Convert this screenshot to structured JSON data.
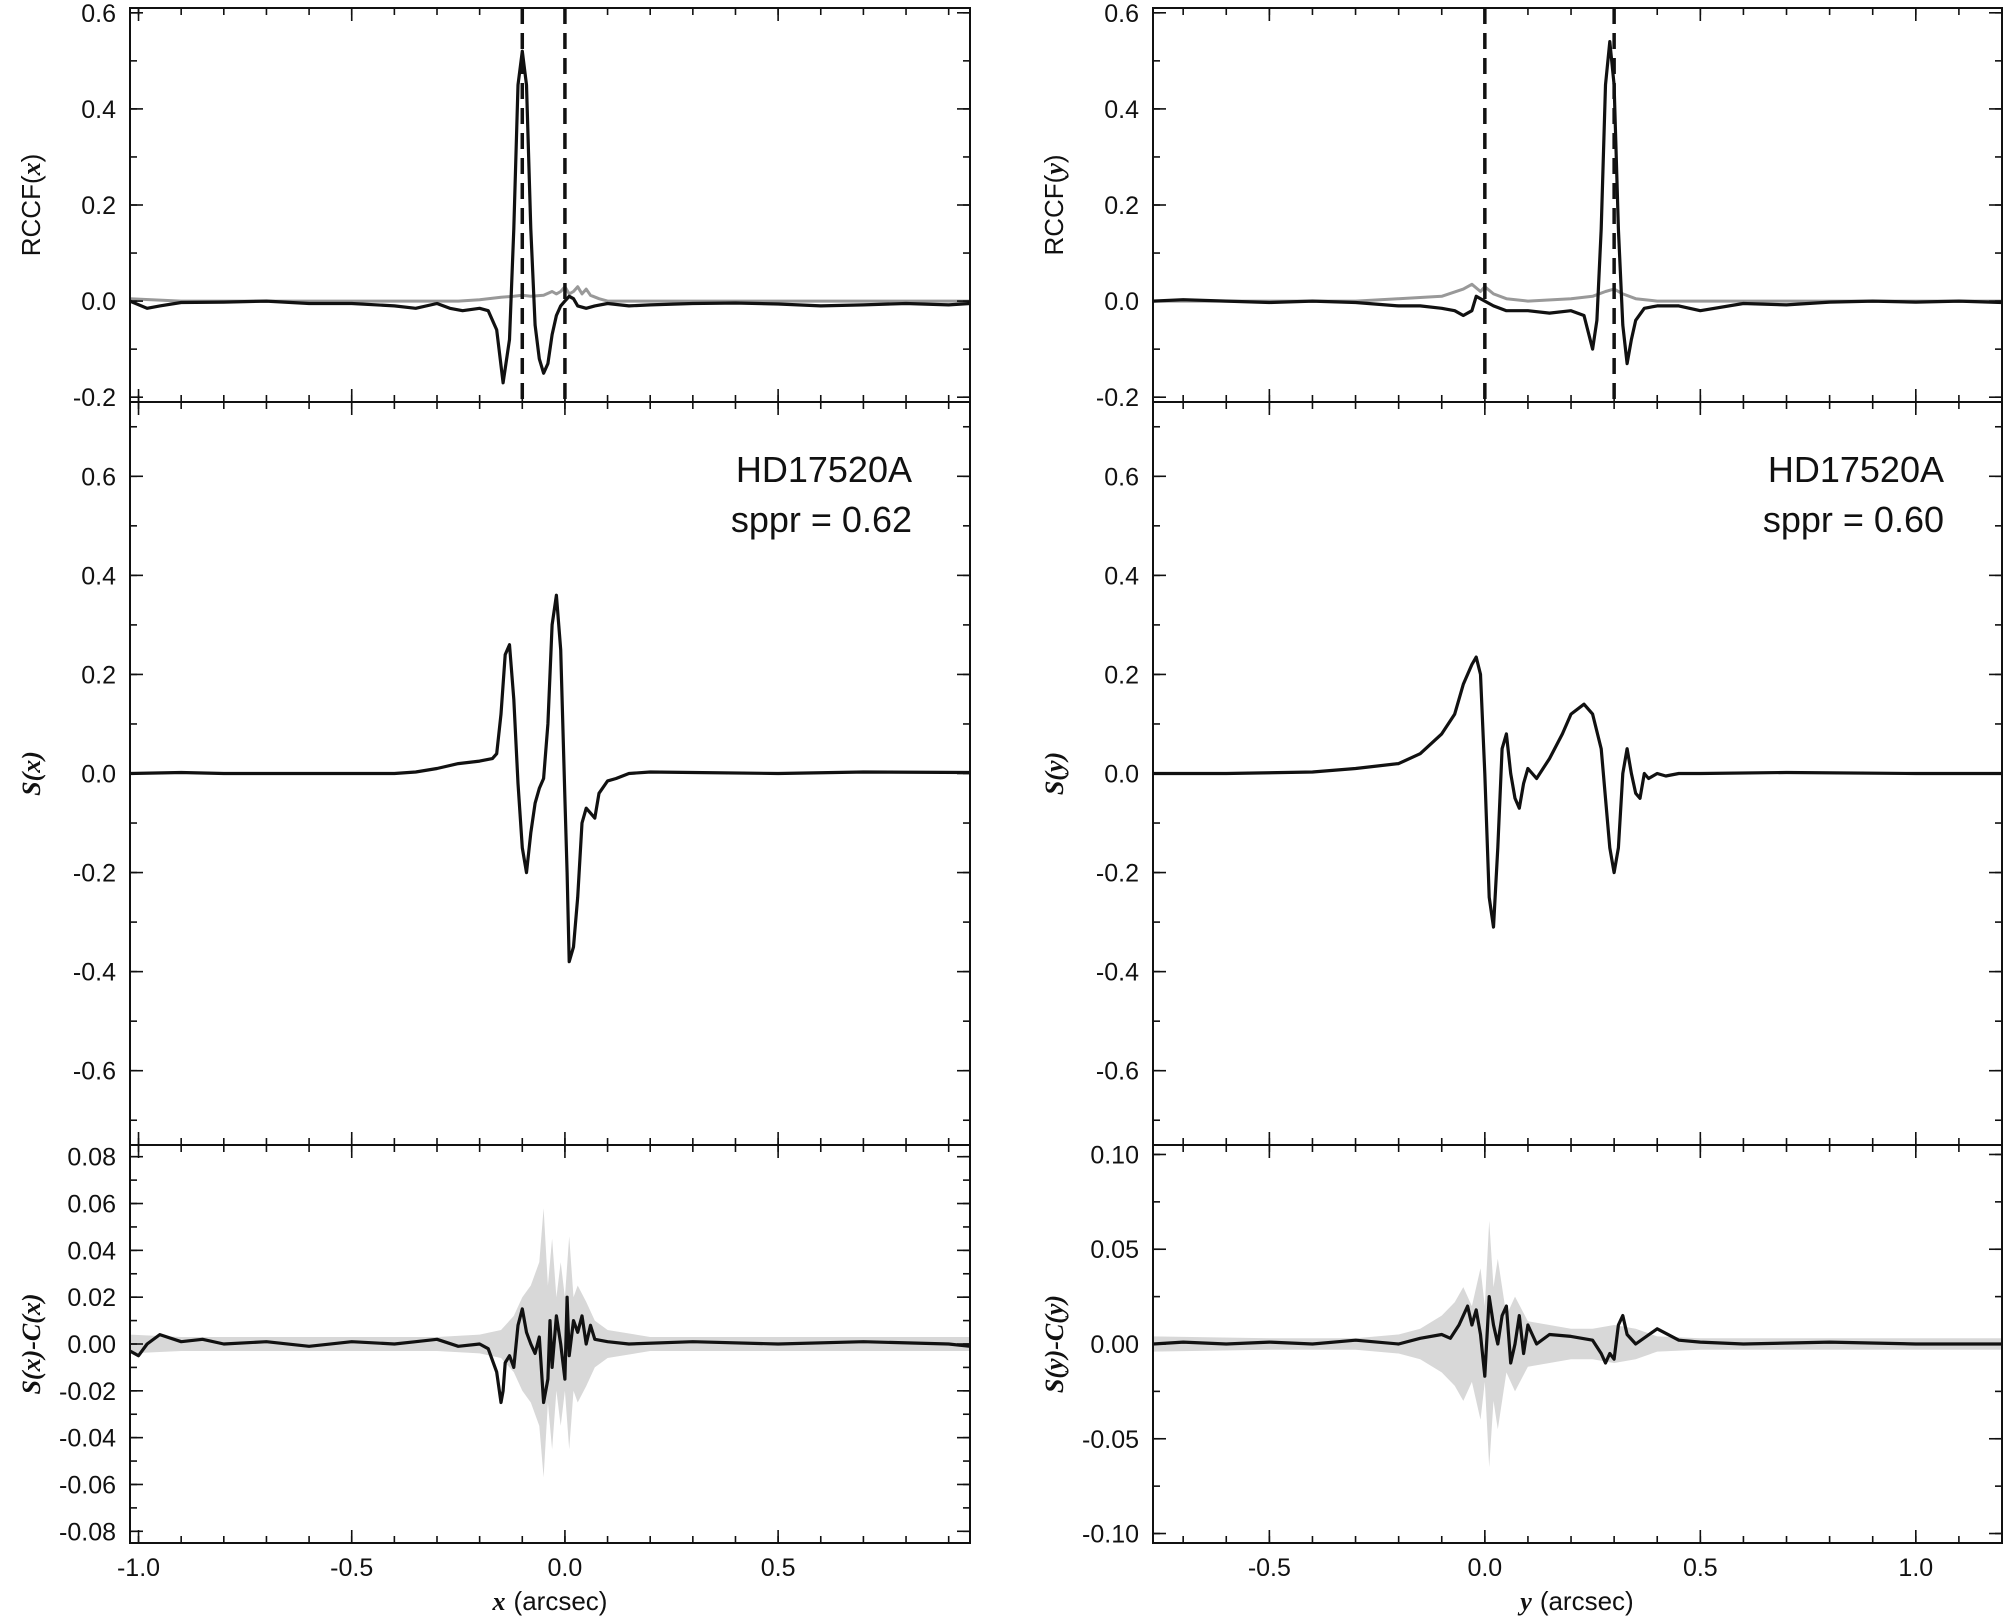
{
  "figure": {
    "left_column": {
      "variable": "x",
      "xlabel": "x (arcsec)",
      "xlim": [
        -1.02,
        0.95
      ],
      "xticks": [
        -1.0,
        -0.5,
        0.0,
        0.5
      ],
      "xtick_labels": [
        "-1.0",
        "-0.5",
        "0.0",
        "0.5"
      ]
    },
    "right_column": {
      "variable": "y",
      "xlabel": "y (arcsec)",
      "xlim": [
        -0.77,
        1.2
      ],
      "xticks": [
        -0.5,
        0.0,
        0.5,
        1.0
      ],
      "xtick_labels": [
        "-0.5",
        "0.0",
        "0.5",
        "1.0"
      ]
    }
  },
  "chart_data": [
    {
      "id": "rccf-x",
      "type": "line",
      "column": "left",
      "row": "top",
      "ylabel": "RCCF(x)",
      "ylim": [
        -0.21,
        0.61
      ],
      "yticks": [
        -0.2,
        0.0,
        0.2,
        0.4,
        0.6
      ],
      "ytick_labels": [
        "-0.2",
        "0.0",
        "0.2",
        "0.4",
        "0.6"
      ],
      "vlines": [
        -0.1,
        0.0
      ],
      "colors": {
        "main": "#111111",
        "secondary": "#999999"
      },
      "series": [
        {
          "role": "main",
          "color": "#111111",
          "x": [
            -1.02,
            -0.98,
            -0.95,
            -0.9,
            -0.8,
            -0.7,
            -0.6,
            -0.5,
            -0.4,
            -0.35,
            -0.3,
            -0.27,
            -0.24,
            -0.2,
            -0.18,
            -0.16,
            -0.145,
            -0.13,
            -0.12,
            -0.11,
            -0.1,
            -0.09,
            -0.08,
            -0.07,
            -0.06,
            -0.05,
            -0.04,
            -0.03,
            -0.02,
            -0.01,
            0.0,
            0.01,
            0.02,
            0.03,
            0.05,
            0.07,
            0.1,
            0.15,
            0.2,
            0.3,
            0.4,
            0.5,
            0.6,
            0.7,
            0.8,
            0.9,
            0.95
          ],
          "y": [
            0.0,
            -0.015,
            -0.01,
            -0.003,
            -0.002,
            0.0,
            -0.005,
            -0.005,
            -0.01,
            -0.015,
            -0.005,
            -0.015,
            -0.02,
            -0.015,
            -0.02,
            -0.06,
            -0.17,
            -0.08,
            0.15,
            0.45,
            0.52,
            0.45,
            0.15,
            -0.05,
            -0.12,
            -0.15,
            -0.13,
            -0.07,
            -0.03,
            -0.01,
            0.0,
            0.01,
            0.005,
            -0.01,
            -0.015,
            -0.01,
            -0.005,
            -0.01,
            -0.008,
            -0.005,
            -0.004,
            -0.006,
            -0.01,
            -0.008,
            -0.005,
            -0.008,
            -0.005
          ]
        },
        {
          "role": "secondary",
          "color": "#999999",
          "x": [
            -1.02,
            -0.9,
            -0.7,
            -0.5,
            -0.3,
            -0.25,
            -0.2,
            -0.15,
            -0.12,
            -0.1,
            -0.08,
            -0.05,
            -0.03,
            -0.02,
            -0.01,
            0.0,
            0.01,
            0.02,
            0.03,
            0.04,
            0.05,
            0.06,
            0.08,
            0.1,
            0.2,
            0.4,
            0.6,
            0.8,
            0.95
          ],
          "y": [
            0.005,
            0.0,
            0.0,
            0.0,
            0.0,
            0.0,
            0.003,
            0.008,
            0.01,
            0.012,
            0.01,
            0.012,
            0.02,
            0.015,
            0.02,
            0.03,
            0.015,
            0.02,
            0.03,
            0.015,
            0.025,
            0.012,
            0.005,
            0.0,
            0.0,
            0.0,
            0.0,
            0.0,
            0.0
          ]
        }
      ]
    },
    {
      "id": "s-x",
      "type": "line",
      "column": "left",
      "row": "middle",
      "ylabel": "S(x)",
      "ylim": [
        -0.75,
        0.75
      ],
      "yticks": [
        -0.6,
        -0.4,
        -0.2,
        0.0,
        0.2,
        0.4,
        0.6
      ],
      "ytick_labels": [
        "-0.6",
        "-0.4",
        "-0.2",
        "0.0",
        "0.2",
        "0.4",
        "0.6"
      ],
      "annotation": [
        "HD17520A",
        "sppr = 0.62"
      ],
      "series": [
        {
          "role": "main",
          "color": "#111111",
          "x": [
            -1.02,
            -0.9,
            -0.8,
            -0.6,
            -0.4,
            -0.35,
            -0.3,
            -0.25,
            -0.2,
            -0.17,
            -0.16,
            -0.15,
            -0.14,
            -0.13,
            -0.12,
            -0.11,
            -0.1,
            -0.09,
            -0.08,
            -0.07,
            -0.06,
            -0.05,
            -0.04,
            -0.03,
            -0.02,
            -0.01,
            0.0,
            0.005,
            0.01,
            0.02,
            0.03,
            0.04,
            0.05,
            0.06,
            0.07,
            0.08,
            0.1,
            0.12,
            0.15,
            0.2,
            0.3,
            0.5,
            0.7,
            0.95
          ],
          "y": [
            0.0,
            0.002,
            0.0,
            0.0,
            0.0,
            0.003,
            0.01,
            0.02,
            0.025,
            0.03,
            0.04,
            0.12,
            0.24,
            0.26,
            0.15,
            -0.02,
            -0.15,
            -0.2,
            -0.12,
            -0.06,
            -0.03,
            -0.01,
            0.1,
            0.3,
            0.36,
            0.25,
            -0.05,
            -0.2,
            -0.38,
            -0.35,
            -0.25,
            -0.1,
            -0.07,
            -0.08,
            -0.09,
            -0.04,
            -0.015,
            -0.01,
            0.0,
            0.003,
            0.002,
            0.0,
            0.003,
            0.002
          ]
        }
      ]
    },
    {
      "id": "resid-x",
      "type": "area",
      "column": "left",
      "row": "bottom",
      "ylabel": "S(x)-C(x)",
      "ylim": [
        -0.085,
        0.085
      ],
      "yticks": [
        -0.08,
        -0.06,
        -0.04,
        -0.02,
        0.0,
        0.02,
        0.04,
        0.06,
        0.08
      ],
      "ytick_labels": [
        "-0.08",
        "-0.06",
        "-0.04",
        "-0.02",
        "0.00",
        "0.02",
        "0.04",
        "0.06",
        "0.08"
      ],
      "band": {
        "color": "#d8d8d8",
        "x": [
          -1.02,
          -0.9,
          -0.5,
          -0.3,
          -0.2,
          -0.15,
          -0.12,
          -0.1,
          -0.08,
          -0.06,
          -0.05,
          -0.04,
          -0.03,
          -0.02,
          -0.01,
          0.0,
          0.01,
          0.02,
          0.03,
          0.05,
          0.07,
          0.1,
          0.2,
          0.5,
          0.95
        ],
        "upper": [
          0.004,
          0.003,
          0.003,
          0.003,
          0.004,
          0.006,
          0.012,
          0.02,
          0.025,
          0.035,
          0.058,
          0.025,
          0.045,
          0.02,
          0.035,
          0.02,
          0.046,
          0.02,
          0.025,
          0.018,
          0.01,
          0.006,
          0.003,
          0.003,
          0.003
        ],
        "lower": [
          -0.004,
          -0.003,
          -0.003,
          -0.003,
          -0.004,
          -0.006,
          -0.012,
          -0.02,
          -0.025,
          -0.035,
          -0.057,
          -0.025,
          -0.045,
          -0.02,
          -0.035,
          -0.02,
          -0.045,
          -0.02,
          -0.025,
          -0.018,
          -0.01,
          -0.006,
          -0.003,
          -0.003,
          -0.003
        ]
      },
      "series": [
        {
          "role": "residual",
          "color": "#111111",
          "x": [
            -1.02,
            -1.0,
            -0.98,
            -0.95,
            -0.9,
            -0.85,
            -0.8,
            -0.7,
            -0.6,
            -0.5,
            -0.4,
            -0.35,
            -0.3,
            -0.25,
            -0.2,
            -0.18,
            -0.16,
            -0.15,
            -0.145,
            -0.14,
            -0.13,
            -0.12,
            -0.11,
            -0.1,
            -0.09,
            -0.08,
            -0.07,
            -0.06,
            -0.05,
            -0.04,
            -0.035,
            -0.03,
            -0.02,
            -0.01,
            0.0,
            0.005,
            0.01,
            0.02,
            0.03,
            0.04,
            0.05,
            0.06,
            0.07,
            0.1,
            0.15,
            0.3,
            0.5,
            0.7,
            0.9,
            0.95
          ],
          "y": [
            -0.003,
            -0.005,
            0.0,
            0.004,
            0.001,
            0.002,
            0.0,
            0.001,
            -0.001,
            0.001,
            0.0,
            0.001,
            0.002,
            -0.001,
            0.0,
            -0.002,
            -0.012,
            -0.025,
            -0.02,
            -0.008,
            -0.005,
            -0.01,
            0.008,
            0.015,
            0.005,
            0.0,
            -0.004,
            0.003,
            -0.025,
            -0.015,
            0.01,
            -0.01,
            0.012,
            0.0,
            -0.015,
            0.02,
            -0.005,
            0.01,
            0.005,
            0.012,
            0.0,
            0.008,
            0.002,
            0.001,
            0.0,
            0.001,
            0.0,
            0.001,
            0.0,
            -0.001
          ]
        }
      ]
    },
    {
      "id": "rccf-y",
      "type": "line",
      "column": "right",
      "row": "top",
      "ylabel": "RCCF(y)",
      "ylim": [
        -0.21,
        0.61
      ],
      "yticks": [
        -0.2,
        0.0,
        0.2,
        0.4,
        0.6
      ],
      "ytick_labels": [
        "-0.2",
        "0.0",
        "0.2",
        "0.4",
        "0.6"
      ],
      "vlines": [
        0.0,
        0.3
      ],
      "series": [
        {
          "role": "main",
          "color": "#111111",
          "x": [
            -0.77,
            -0.7,
            -0.6,
            -0.5,
            -0.4,
            -0.3,
            -0.2,
            -0.15,
            -0.1,
            -0.07,
            -0.05,
            -0.03,
            -0.02,
            0.0,
            0.02,
            0.05,
            0.1,
            0.15,
            0.2,
            0.23,
            0.25,
            0.26,
            0.27,
            0.28,
            0.29,
            0.3,
            0.31,
            0.32,
            0.33,
            0.34,
            0.35,
            0.37,
            0.4,
            0.45,
            0.5,
            0.6,
            0.7,
            0.8,
            0.9,
            1.0,
            1.1,
            1.2
          ],
          "y": [
            0.0,
            0.003,
            0.0,
            -0.003,
            0.0,
            -0.003,
            -0.01,
            -0.01,
            -0.015,
            -0.02,
            -0.03,
            -0.02,
            0.01,
            0.0,
            -0.01,
            -0.02,
            -0.02,
            -0.025,
            -0.02,
            -0.03,
            -0.1,
            -0.04,
            0.15,
            0.45,
            0.54,
            0.45,
            0.15,
            -0.05,
            -0.13,
            -0.08,
            -0.04,
            -0.015,
            -0.01,
            -0.01,
            -0.02,
            -0.005,
            -0.008,
            -0.002,
            0.0,
            -0.002,
            0.0,
            -0.003
          ]
        },
        {
          "role": "secondary",
          "color": "#999999",
          "x": [
            -0.77,
            -0.5,
            -0.3,
            -0.2,
            -0.1,
            -0.05,
            -0.03,
            -0.01,
            0.0,
            0.02,
            0.05,
            0.1,
            0.2,
            0.25,
            0.28,
            0.3,
            0.32,
            0.35,
            0.4,
            0.5,
            0.7,
            1.0,
            1.2
          ],
          "y": [
            0.0,
            0.0,
            0.0,
            0.005,
            0.01,
            0.025,
            0.035,
            0.02,
            0.03,
            0.015,
            0.005,
            0.0,
            0.005,
            0.01,
            0.02,
            0.025,
            0.015,
            0.005,
            0.0,
            0.0,
            0.0,
            0.0,
            0.0
          ]
        }
      ]
    },
    {
      "id": "s-y",
      "type": "line",
      "column": "right",
      "row": "middle",
      "ylabel": "S(y)",
      "ylim": [
        -0.75,
        0.75
      ],
      "yticks": [
        -0.6,
        -0.4,
        -0.2,
        0.0,
        0.2,
        0.4,
        0.6
      ],
      "ytick_labels": [
        "-0.6",
        "-0.4",
        "-0.2",
        "0.0",
        "0.2",
        "0.4",
        "0.6"
      ],
      "annotation": [
        "HD17520A",
        "sppr = 0.60"
      ],
      "series": [
        {
          "role": "main",
          "color": "#111111",
          "x": [
            -0.77,
            -0.6,
            -0.4,
            -0.3,
            -0.2,
            -0.15,
            -0.1,
            -0.07,
            -0.05,
            -0.03,
            -0.02,
            -0.01,
            0.0,
            0.01,
            0.02,
            0.03,
            0.04,
            0.05,
            0.06,
            0.07,
            0.08,
            0.09,
            0.1,
            0.12,
            0.15,
            0.18,
            0.2,
            0.23,
            0.25,
            0.27,
            0.28,
            0.29,
            0.3,
            0.31,
            0.32,
            0.33,
            0.34,
            0.35,
            0.36,
            0.37,
            0.38,
            0.39,
            0.4,
            0.42,
            0.45,
            0.5,
            0.7,
            1.0,
            1.2
          ],
          "y": [
            0.0,
            0.0,
            0.003,
            0.01,
            0.02,
            0.04,
            0.08,
            0.12,
            0.18,
            0.22,
            0.235,
            0.2,
            0.0,
            -0.25,
            -0.31,
            -0.15,
            0.05,
            0.08,
            0.0,
            -0.05,
            -0.07,
            -0.02,
            0.01,
            -0.01,
            0.03,
            0.08,
            0.12,
            0.14,
            0.12,
            0.05,
            -0.05,
            -0.15,
            -0.2,
            -0.15,
            0.0,
            0.05,
            0.0,
            -0.04,
            -0.05,
            0.0,
            -0.01,
            -0.005,
            0.0,
            -0.005,
            0.0,
            0.0,
            0.002,
            0.0,
            0.0
          ]
        }
      ]
    },
    {
      "id": "resid-y",
      "type": "area",
      "column": "right",
      "row": "bottom",
      "ylabel": "S(y)-C(y)",
      "ylim": [
        -0.105,
        0.105
      ],
      "yticks": [
        -0.1,
        -0.05,
        0.0,
        0.05,
        0.1
      ],
      "ytick_labels": [
        "-0.10",
        "-0.05",
        "0.00",
        "0.05",
        "0.10"
      ],
      "band": {
        "color": "#d8d8d8",
        "x": [
          -0.77,
          -0.5,
          -0.3,
          -0.2,
          -0.15,
          -0.1,
          -0.07,
          -0.05,
          -0.03,
          -0.01,
          0.0,
          0.01,
          0.02,
          0.03,
          0.05,
          0.07,
          0.1,
          0.15,
          0.2,
          0.25,
          0.3,
          0.35,
          0.4,
          0.5,
          1.2
        ],
        "upper": [
          0.004,
          0.003,
          0.003,
          0.005,
          0.008,
          0.015,
          0.022,
          0.03,
          0.02,
          0.04,
          0.02,
          0.065,
          0.03,
          0.045,
          0.015,
          0.025,
          0.012,
          0.01,
          0.008,
          0.008,
          0.01,
          0.008,
          0.004,
          0.003,
          0.003
        ],
        "lower": [
          -0.004,
          -0.003,
          -0.003,
          -0.005,
          -0.008,
          -0.015,
          -0.022,
          -0.03,
          -0.02,
          -0.04,
          -0.02,
          -0.065,
          -0.03,
          -0.045,
          -0.015,
          -0.025,
          -0.012,
          -0.01,
          -0.008,
          -0.008,
          -0.01,
          -0.008,
          -0.004,
          -0.003,
          -0.003
        ]
      },
      "series": [
        {
          "role": "residual",
          "color": "#111111",
          "x": [
            -0.77,
            -0.7,
            -0.6,
            -0.5,
            -0.4,
            -0.3,
            -0.2,
            -0.15,
            -0.1,
            -0.08,
            -0.06,
            -0.05,
            -0.04,
            -0.03,
            -0.02,
            -0.01,
            0.0,
            0.01,
            0.02,
            0.03,
            0.04,
            0.05,
            0.06,
            0.07,
            0.08,
            0.09,
            0.1,
            0.12,
            0.15,
            0.2,
            0.25,
            0.27,
            0.28,
            0.29,
            0.3,
            0.31,
            0.32,
            0.33,
            0.35,
            0.4,
            0.45,
            0.5,
            0.6,
            0.8,
            1.0,
            1.2
          ],
          "y": [
            0.0,
            0.001,
            0.0,
            0.001,
            0.0,
            0.002,
            0.0,
            0.003,
            0.005,
            0.003,
            0.01,
            0.015,
            0.02,
            0.01,
            0.018,
            0.005,
            -0.017,
            0.025,
            0.01,
            0.0,
            0.015,
            0.02,
            -0.01,
            0.0,
            0.015,
            -0.005,
            0.01,
            0.0,
            0.005,
            0.004,
            0.002,
            -0.005,
            -0.01,
            -0.005,
            -0.008,
            0.01,
            0.015,
            0.005,
            0.0,
            0.008,
            0.002,
            0.001,
            0.0,
            0.001,
            0.0,
            0.0
          ]
        }
      ]
    }
  ]
}
